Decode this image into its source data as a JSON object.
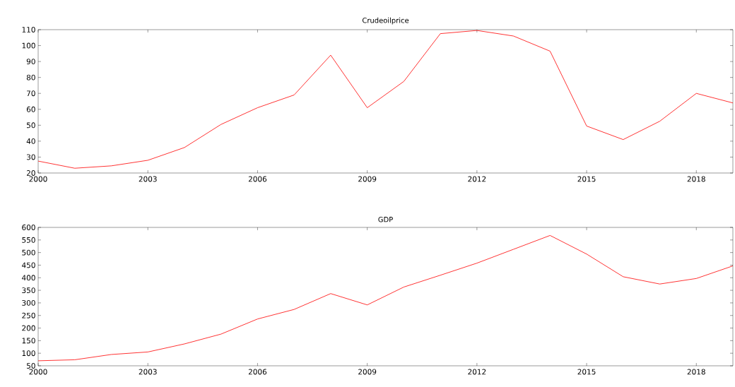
{
  "chart_data": [
    {
      "type": "line",
      "title": "Crudeoilprice",
      "x": [
        2000,
        2001,
        2002,
        2003,
        2004,
        2005,
        2006,
        2007,
        2008,
        2009,
        2010,
        2011,
        2012,
        2013,
        2014,
        2015,
        2016,
        2017,
        2018,
        2019
      ],
      "series": [
        {
          "color": "#ff0000",
          "values": [
            27.5,
            23,
            24.5,
            28,
            36,
            50.5,
            61,
            69,
            94,
            61,
            77.5,
            107.5,
            109.5,
            106,
            96.5,
            49.5,
            41,
            52.5,
            70,
            64
          ]
        }
      ],
      "xlim": [
        2000,
        2019
      ],
      "ylim": [
        20,
        110
      ],
      "xticks": [
        2000,
        2003,
        2006,
        2009,
        2012,
        2015,
        2018
      ],
      "yticks": [
        20,
        30,
        40,
        50,
        60,
        70,
        80,
        90,
        100,
        110
      ]
    },
    {
      "type": "line",
      "title": "GDP",
      "x": [
        2000,
        2001,
        2002,
        2003,
        2004,
        2005,
        2006,
        2007,
        2008,
        2009,
        2010,
        2011,
        2012,
        2013,
        2014,
        2015,
        2016,
        2017,
        2018,
        2019
      ],
      "series": [
        {
          "color": "#ff0000",
          "values": [
            70,
            74,
            95,
            105,
            137,
            176,
            236,
            274,
            337,
            292,
            363,
            410,
            458,
            513,
            568,
            494,
            404,
            375,
            397,
            447
          ]
        }
      ],
      "xlim": [
        2000,
        2019
      ],
      "ylim": [
        50,
        600
      ],
      "xticks": [
        2000,
        2003,
        2006,
        2009,
        2012,
        2015,
        2018
      ],
      "yticks": [
        50,
        100,
        150,
        200,
        250,
        300,
        350,
        400,
        450,
        500,
        550,
        600
      ]
    }
  ]
}
